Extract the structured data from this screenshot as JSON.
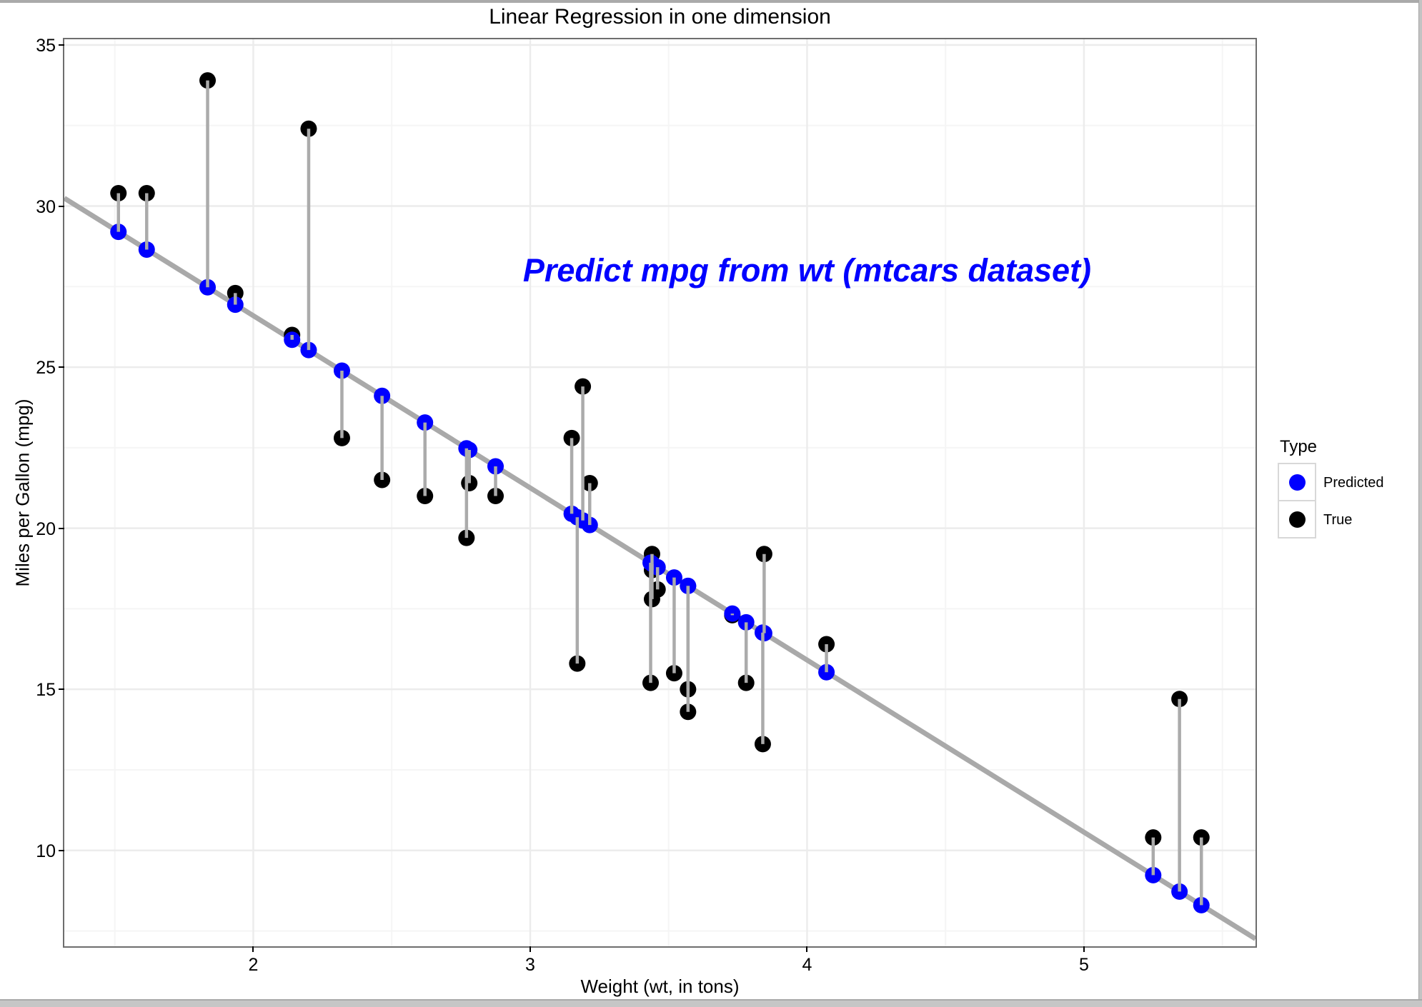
{
  "chart_data": {
    "type": "scatter",
    "title": "Linear Regression in one dimension",
    "xlabel": "Weight (wt, in tons)",
    "ylabel": "Miles per Gallon (mpg)",
    "annotation": {
      "text": "Predict mpg from wt (mtcars dataset)",
      "x": 4.0,
      "y": 28.0,
      "color": "#0000ff"
    },
    "xlim": [
      1.3175,
      5.6195
    ],
    "ylim": [
      7.0225,
      35.1775
    ],
    "x_ticks": [
      2,
      3,
      4,
      5
    ],
    "y_ticks": [
      10,
      15,
      20,
      25,
      30,
      35
    ],
    "grid": {
      "on": true,
      "x_minor": [
        1.5,
        2.5,
        3.5,
        4.5,
        5.5
      ],
      "y_minor": [
        7.5,
        12.5,
        17.5,
        22.5,
        27.5,
        32.5
      ]
    },
    "regression_line": {
      "intercept": 37.285,
      "slope": -5.344
    },
    "x": [
      2.62,
      2.875,
      2.32,
      3.215,
      3.44,
      3.46,
      3.57,
      3.19,
      3.15,
      3.44,
      3.44,
      4.07,
      3.73,
      3.78,
      5.25,
      5.424,
      5.345,
      2.2,
      1.615,
      1.835,
      2.465,
      3.52,
      3.435,
      3.84,
      3.845,
      1.935,
      2.14,
      1.513,
      3.17,
      2.77,
      3.57,
      2.78
    ],
    "series": [
      {
        "name": "True",
        "color": "#000000",
        "values": [
          21.0,
          21.0,
          22.8,
          21.4,
          18.7,
          18.1,
          14.3,
          24.4,
          22.8,
          19.2,
          17.8,
          16.4,
          17.3,
          15.2,
          10.4,
          10.4,
          14.7,
          32.4,
          30.4,
          33.9,
          21.5,
          15.5,
          15.2,
          13.3,
          19.2,
          27.3,
          26.0,
          30.4,
          15.8,
          19.7,
          15.0,
          21.4
        ]
      },
      {
        "name": "Predicted",
        "color": "#0000ff",
        "values": [
          23.28,
          21.92,
          24.89,
          20.1,
          18.9,
          18.79,
          18.21,
          20.24,
          20.45,
          18.9,
          18.9,
          15.53,
          17.35,
          17.08,
          9.23,
          8.3,
          8.72,
          25.53,
          28.65,
          27.48,
          24.11,
          18.47,
          18.93,
          16.76,
          16.74,
          26.94,
          25.85,
          29.2,
          20.34,
          22.48,
          18.21,
          22.43
        ]
      }
    ],
    "legend": {
      "title": "Type",
      "position": "right",
      "entries": [
        {
          "label": "Predicted",
          "color": "#0000ff"
        },
        {
          "label": "True",
          "color": "#000000"
        }
      ]
    },
    "styles": {
      "point_radius": 11.5,
      "line_color": "#a9a9a9",
      "line_width": 7,
      "segment_color": "#ababab",
      "segment_width": 4.5,
      "grid_major_color": "#ececec",
      "grid_minor_color": "#f5f5f5",
      "panel_border_color": "#6e6e6e"
    }
  }
}
